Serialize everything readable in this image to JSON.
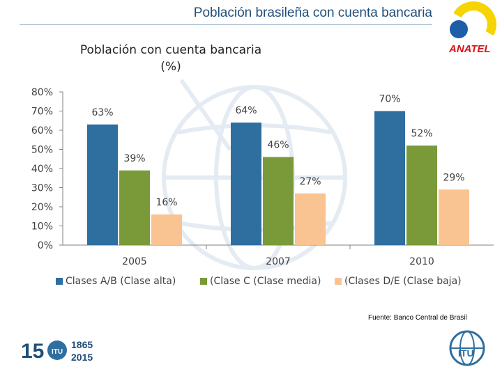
{
  "header": {
    "title": "Población brasileña con cuenta bancaria",
    "logo_text": "ANATEL"
  },
  "footer": {
    "source": "Fuente: Banco Central de Brasil",
    "years_logo": "1865 2015"
  },
  "colors": {
    "series_a": "#2e6fa0",
    "series_b": "#7a9a3a",
    "series_c": "#f9c392",
    "title": "#1f4e79"
  },
  "chart_data": {
    "type": "bar",
    "title_line1": "Población con cuenta bancaria",
    "title_line2": "(%)",
    "categories": [
      "2005",
      "2007",
      "2010"
    ],
    "series": [
      {
        "name": "Clases A/B (Clase alta)",
        "values": [
          63,
          64,
          70
        ],
        "labels": [
          "63%",
          "64%",
          "70%"
        ]
      },
      {
        "name": "(Clase C (Clase media)",
        "values": [
          39,
          46,
          52
        ],
        "labels": [
          "39%",
          "46%",
          "52%"
        ]
      },
      {
        "name": "(Clases D/E (Clase baja)",
        "values": [
          16,
          27,
          29
        ],
        "labels": [
          "16%",
          "27%",
          "29%"
        ]
      }
    ],
    "y_ticks": [
      "0%",
      "10%",
      "20%",
      "30%",
      "40%",
      "50%",
      "60%",
      "70%",
      "80%"
    ],
    "ylim": [
      0,
      80
    ],
    "legend_position": "bottom",
    "grid": false
  }
}
